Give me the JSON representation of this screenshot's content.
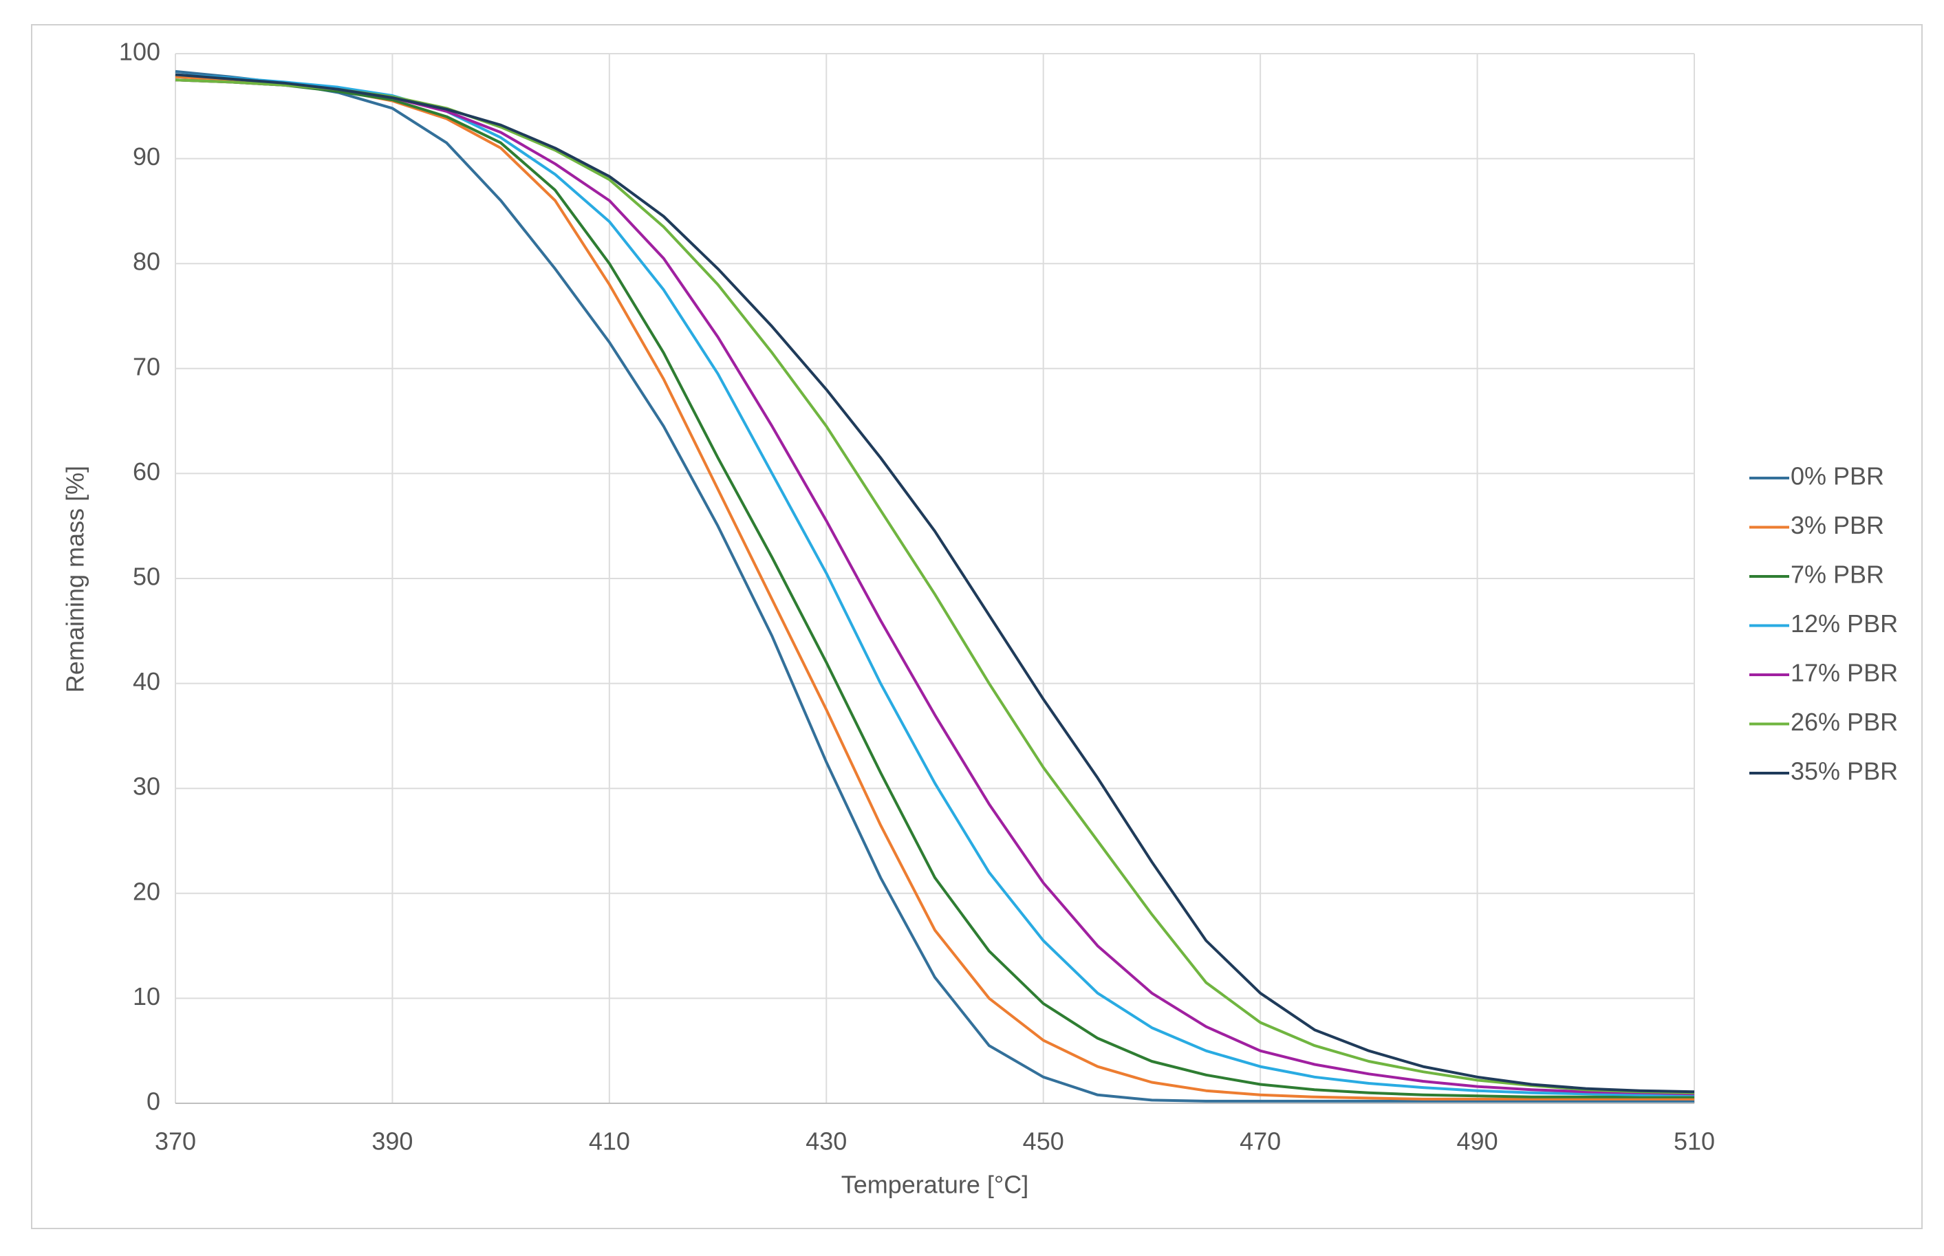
{
  "chart_data": {
    "type": "line",
    "x_label": "Temperature [°C]",
    "y_label": "Remaining mass [%]",
    "x": [
      370,
      375,
      380,
      385,
      390,
      395,
      400,
      405,
      410,
      415,
      420,
      425,
      430,
      435,
      440,
      445,
      450,
      455,
      460,
      465,
      470,
      475,
      480,
      485,
      490,
      495,
      500,
      505,
      510
    ],
    "series": [
      {
        "name": "0% PBR",
        "color": "#33709a",
        "values": [
          98.3,
          97.8,
          97.2,
          96.3,
          94.8,
          91.5,
          86,
          79.5,
          72.5,
          64.5,
          55,
          44.5,
          32.5,
          21.5,
          12,
          5.5,
          2.5,
          0.8,
          0.3,
          0.2,
          0.2,
          0.2,
          0.2,
          0.2,
          0.2,
          0.2,
          0.2,
          0.2,
          0.2
        ]
      },
      {
        "name": "3% PBR",
        "color": "#ed7d31",
        "values": [
          97.8,
          97.5,
          97.2,
          96.5,
          95.5,
          93.8,
          91,
          86,
          78,
          69,
          58.5,
          48,
          37.5,
          26.5,
          16.5,
          10,
          6,
          3.5,
          2,
          1.2,
          0.8,
          0.6,
          0.5,
          0.4,
          0.4,
          0.4,
          0.4,
          0.4,
          0.4
        ]
      },
      {
        "name": "7% PBR",
        "color": "#2e7d32",
        "values": [
          97.5,
          97.3,
          97,
          96.4,
          95.6,
          94,
          91.5,
          87,
          80,
          71.5,
          61.5,
          52,
          42,
          31.5,
          21.5,
          14.5,
          9.5,
          6.2,
          4,
          2.7,
          1.8,
          1.3,
          1,
          0.8,
          0.7,
          0.6,
          0.6,
          0.6,
          0.6
        ]
      },
      {
        "name": "12% PBR",
        "color": "#29abe2",
        "values": [
          98,
          97.7,
          97.3,
          96.8,
          96,
          94.5,
          92,
          88.5,
          84,
          77.5,
          69.5,
          60,
          50.5,
          40,
          30.5,
          22,
          15.5,
          10.5,
          7.2,
          5,
          3.5,
          2.5,
          1.9,
          1.5,
          1.2,
          1,
          0.9,
          0.8,
          0.8
        ]
      },
      {
        "name": "17% PBR",
        "color": "#a020a0",
        "values": [
          97.5,
          97.3,
          97,
          96.6,
          95.8,
          94.5,
          92.5,
          89.5,
          86,
          80.5,
          73,
          64.5,
          55.5,
          46,
          37,
          28.5,
          21,
          15,
          10.5,
          7.3,
          5,
          3.7,
          2.8,
          2.1,
          1.6,
          1.3,
          1.1,
          1,
          0.9
        ]
      },
      {
        "name": "26% PBR",
        "color": "#70b540",
        "values": [
          97.5,
          97.3,
          97,
          96.6,
          95.9,
          94.8,
          93,
          90.8,
          88,
          83.5,
          78,
          71.5,
          64.5,
          56.5,
          48.5,
          40,
          32,
          25,
          18,
          11.5,
          7.7,
          5.5,
          4,
          3,
          2.2,
          1.7,
          1.3,
          1.1,
          1
        ]
      },
      {
        "name": "35% PBR",
        "color": "#1f3b5a",
        "values": [
          98,
          97.6,
          97.2,
          96.6,
          95.8,
          94.7,
          93.2,
          91,
          88.3,
          84.5,
          79.5,
          74,
          68,
          61.5,
          54.5,
          46.5,
          38.5,
          31,
          23,
          15.5,
          10.5,
          7,
          5,
          3.5,
          2.5,
          1.8,
          1.4,
          1.2,
          1.1
        ]
      }
    ],
    "xlim": [
      370,
      510
    ],
    "xticks": [
      370,
      390,
      410,
      430,
      450,
      470,
      490,
      510
    ],
    "ylim": [
      0,
      100
    ],
    "yticks": [
      0,
      10,
      20,
      30,
      40,
      50,
      60,
      70,
      80,
      90,
      100
    ],
    "grid": true,
    "legend": "right"
  }
}
